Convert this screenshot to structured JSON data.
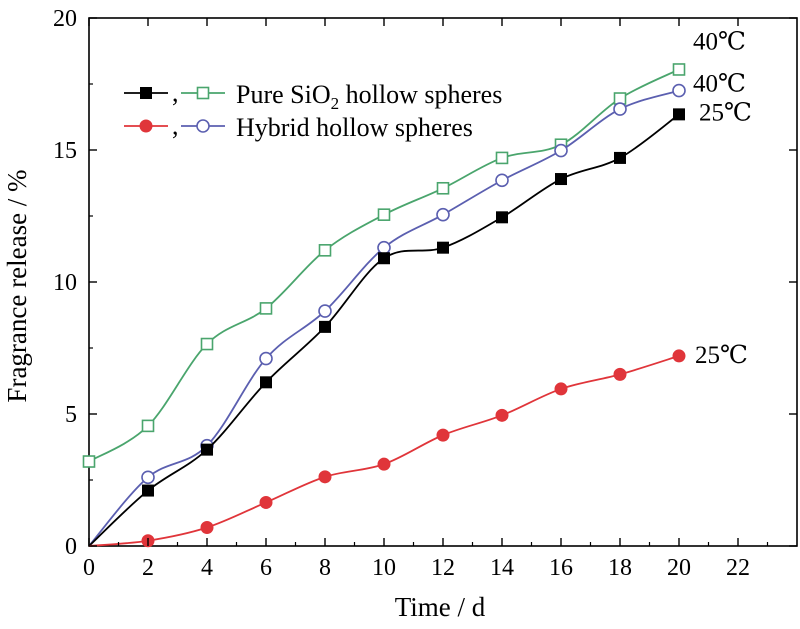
{
  "chart_data": {
    "type": "line",
    "xlabel": "Time / d",
    "ylabel": "Fragrance release / %",
    "xlim": [
      0,
      24
    ],
    "ylim": [
      0,
      20
    ],
    "x_ticks": [
      0,
      2,
      4,
      6,
      8,
      10,
      12,
      14,
      16,
      18,
      20,
      22
    ],
    "y_ticks": [
      0,
      5,
      10,
      15,
      20
    ],
    "grid": false,
    "x": [
      0,
      2,
      4,
      6,
      8,
      10,
      12,
      14,
      16,
      18,
      20
    ],
    "series": [
      {
        "id": "pure_40",
        "group": "Pure SiO2 hollow spheres",
        "temp_label": "40℃",
        "marker": "square-open",
        "color": "#4aa56d",
        "values": [
          3.2,
          4.55,
          7.65,
          9.0,
          11.2,
          12.55,
          13.55,
          14.7,
          15.2,
          16.95,
          18.05
        ]
      },
      {
        "id": "hybrid_40",
        "group": "Hybrid hollow spheres",
        "temp_label": "40℃",
        "marker": "circle-open",
        "color": "#5b5fb0",
        "values": [
          0,
          2.6,
          3.8,
          7.1,
          8.9,
          11.3,
          12.55,
          13.85,
          14.98,
          16.55,
          17.25
        ]
      },
      {
        "id": "pure_25",
        "group": "Pure SiO2 hollow spheres",
        "temp_label": "25℃",
        "marker": "square-filled",
        "color": "#000000",
        "values": [
          0,
          2.1,
          3.65,
          6.2,
          8.3,
          10.9,
          11.3,
          12.45,
          13.9,
          14.7,
          16.35
        ]
      },
      {
        "id": "hybrid_25",
        "group": "Hybrid hollow spheres",
        "temp_label": "25℃",
        "marker": "circle-filled",
        "color": "#e0353a",
        "values": [
          0,
          0.2,
          0.7,
          1.65,
          2.62,
          3.1,
          4.2,
          4.95,
          5.95,
          6.5,
          7.2
        ]
      }
    ],
    "legend": {
      "placement": "top-left",
      "separator": ",",
      "entries": [
        {
          "label_prefix": "Pure SiO",
          "label_subscript": "2",
          "label_suffix": " hollow spheres",
          "markers": [
            "square-filled",
            "square-open"
          ],
          "colors": [
            "#000000",
            "#4aa56d"
          ]
        },
        {
          "label_prefix": "Hybrid hollow spheres",
          "label_subscript": "",
          "label_suffix": "",
          "markers": [
            "circle-filled",
            "circle-open"
          ],
          "colors": [
            "#e0353a",
            "#5b5fb0"
          ]
        }
      ]
    }
  }
}
